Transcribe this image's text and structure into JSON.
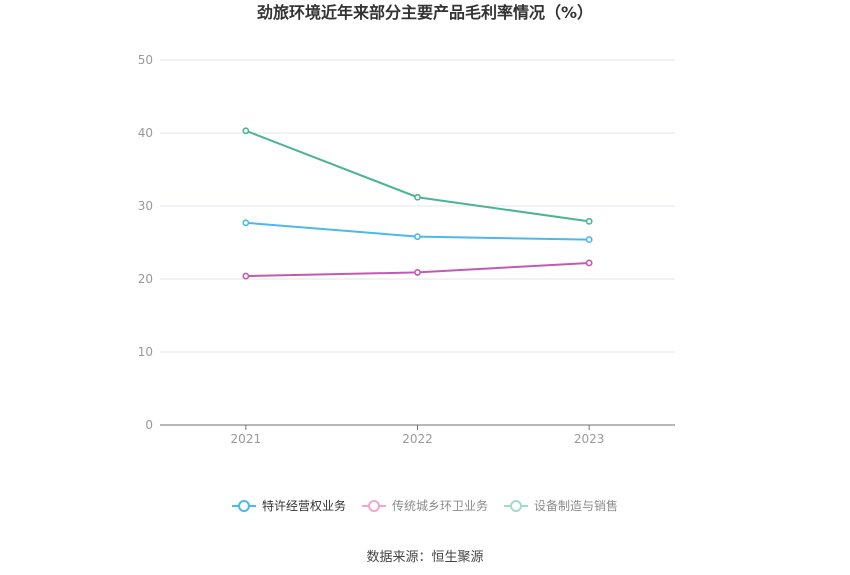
{
  "chart_data": {
    "type": "line",
    "title": "劲旅环境近年来部分主要产品毛利率情况（%）",
    "categories": [
      "2021",
      "2022",
      "2023"
    ],
    "ylim": [
      0,
      50
    ],
    "yticks": [
      0,
      10,
      20,
      30,
      40,
      50
    ],
    "grid": true,
    "legend_position": "bottom",
    "series": [
      {
        "name": "特许经营权业务",
        "values": [
          27.7,
          25.8,
          25.4
        ],
        "color": "#4db8ea",
        "legend_color": "#4db8ea",
        "legend_active": true
      },
      {
        "name": "传统城乡环卫业务",
        "values": [
          20.4,
          20.9,
          22.2
        ],
        "color": "#c45ab0",
        "legend_color": "#f0a6cf",
        "legend_active": false
      },
      {
        "name": "设备制造与销售",
        "values": [
          40.3,
          31.2,
          27.9
        ],
        "color": "#4bb592",
        "legend_color": "#a3dcc6",
        "legend_active": false
      }
    ]
  },
  "footer": {
    "source": "数据来源：恒生聚源"
  }
}
